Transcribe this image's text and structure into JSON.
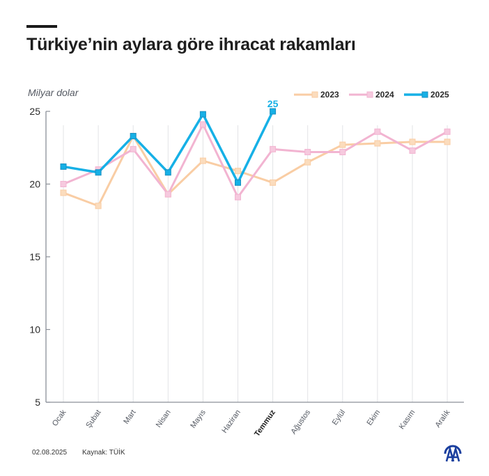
{
  "header": {
    "title": "Türkiye’nin aylara göre ihracat rakamları"
  },
  "footer": {
    "date": "02.08.2025",
    "source": "Kaynak: TÜİK",
    "logo": "aa-logo-icon"
  },
  "colors": {
    "2023": "#f9cda4",
    "2024": "#f2b4d1",
    "2025": "#16b0e6",
    "axis": "#8a8f98",
    "grid": "#e2e3e6",
    "text": "#1e1e1e"
  },
  "chart_data": {
    "type": "line",
    "title": "Türkiye’nin aylara göre ihracat rakamları",
    "ylabel": "Milyar dolar",
    "xlabel": "",
    "ylim": [
      5,
      25
    ],
    "yticks": [
      5,
      10,
      15,
      20,
      25
    ],
    "grid": "vertical lines at each month",
    "legend_position": "top-right",
    "categories": [
      "Ocak",
      "Şubat",
      "Mart",
      "Nisan",
      "Mayıs",
      "Haziran",
      "Temmuz",
      "Ağustos",
      "Eylül",
      "Ekim",
      "Kasım",
      "Aralık"
    ],
    "highlight_category": "Temmuz",
    "series": [
      {
        "name": "2023",
        "values": [
          19.4,
          18.5,
          23.3,
          19.3,
          21.6,
          20.9,
          20.1,
          21.5,
          22.7,
          22.8,
          22.9,
          22.9
        ]
      },
      {
        "name": "2024",
        "values": [
          20.0,
          21.0,
          22.4,
          19.3,
          24.1,
          19.1,
          22.4,
          22.2,
          22.2,
          23.6,
          22.3,
          23.6
        ]
      },
      {
        "name": "2025",
        "values": [
          21.2,
          20.8,
          23.3,
          20.8,
          24.8,
          20.1,
          25.0,
          null,
          null,
          null,
          null,
          null
        ]
      }
    ],
    "annotations": [
      {
        "series": "2025",
        "category": "Temmuz",
        "text": "25"
      }
    ]
  }
}
